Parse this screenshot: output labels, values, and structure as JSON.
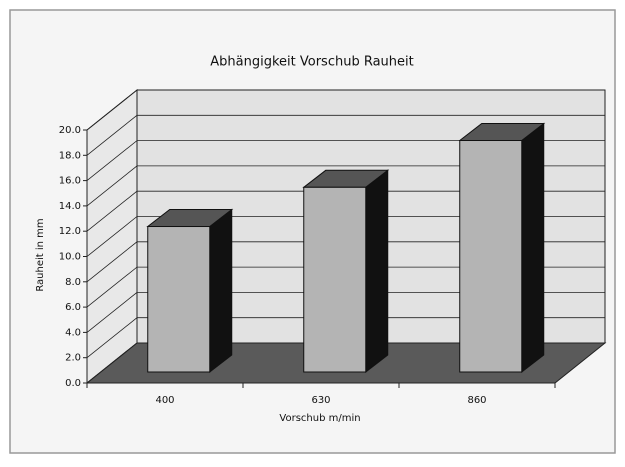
{
  "chart_data": {
    "type": "bar3d",
    "title": "Abhängigkeit Vorschub Rauheit",
    "x_label": "Vorschub m/min",
    "y_label": "Rauheit in mm",
    "categories": [
      "400",
      "630",
      "860"
    ],
    "values": [
      11.5,
      14.6,
      18.3
    ],
    "color": "#b4b4b4",
    "ylim": [
      0,
      20
    ],
    "yticks": [
      {
        "value": 0,
        "label": "0.0"
      },
      {
        "value": 2,
        "label": "2.0"
      },
      {
        "value": 4,
        "label": "4.0"
      },
      {
        "value": 6,
        "label": "6.0"
      },
      {
        "value": 8,
        "label": "8.0"
      },
      {
        "value": 10,
        "label": "10.0"
      },
      {
        "value": 12,
        "label": "12.0"
      },
      {
        "value": 14,
        "label": "14.0"
      },
      {
        "value": 16,
        "label": "16.0"
      },
      {
        "value": 18,
        "label": "18.0"
      },
      {
        "value": 20,
        "label": "20.0"
      }
    ],
    "grid": true
  }
}
